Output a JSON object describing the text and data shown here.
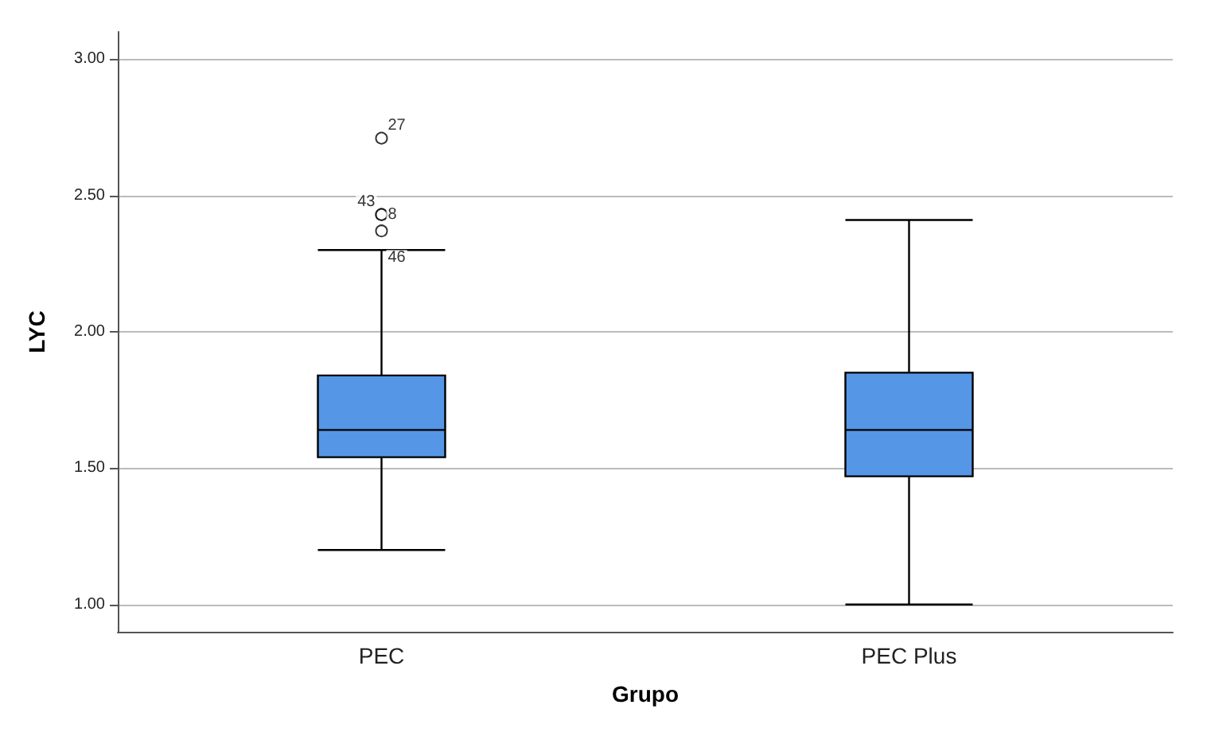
{
  "chart_data": {
    "type": "box",
    "xlabel": "Grupo",
    "ylabel": "LYC",
    "categories": [
      "PEC",
      "PEC Plus"
    ],
    "boxes": [
      {
        "low": 1.2,
        "q1": 1.54,
        "median": 1.64,
        "q3": 1.84,
        "high": 2.3,
        "outliers": [
          2.71,
          2.43,
          2.43,
          2.37
        ]
      },
      {
        "low": 1.0,
        "q1": 1.47,
        "median": 1.64,
        "q3": 1.85,
        "high": 2.41
      }
    ],
    "color": "#5596e6",
    "ylim": [
      0.9,
      3.1
    ],
    "yticks": [
      {
        "value": 1,
        "label": "1.00"
      },
      {
        "value": 1.5,
        "label": "1.50"
      },
      {
        "value": 2,
        "label": "2.00"
      },
      {
        "value": 2.5,
        "label": "2.50"
      },
      {
        "value": 3,
        "label": "3.00"
      }
    ],
    "grid": "y",
    "annotations": [
      "27",
      "43",
      "8",
      "46"
    ]
  }
}
